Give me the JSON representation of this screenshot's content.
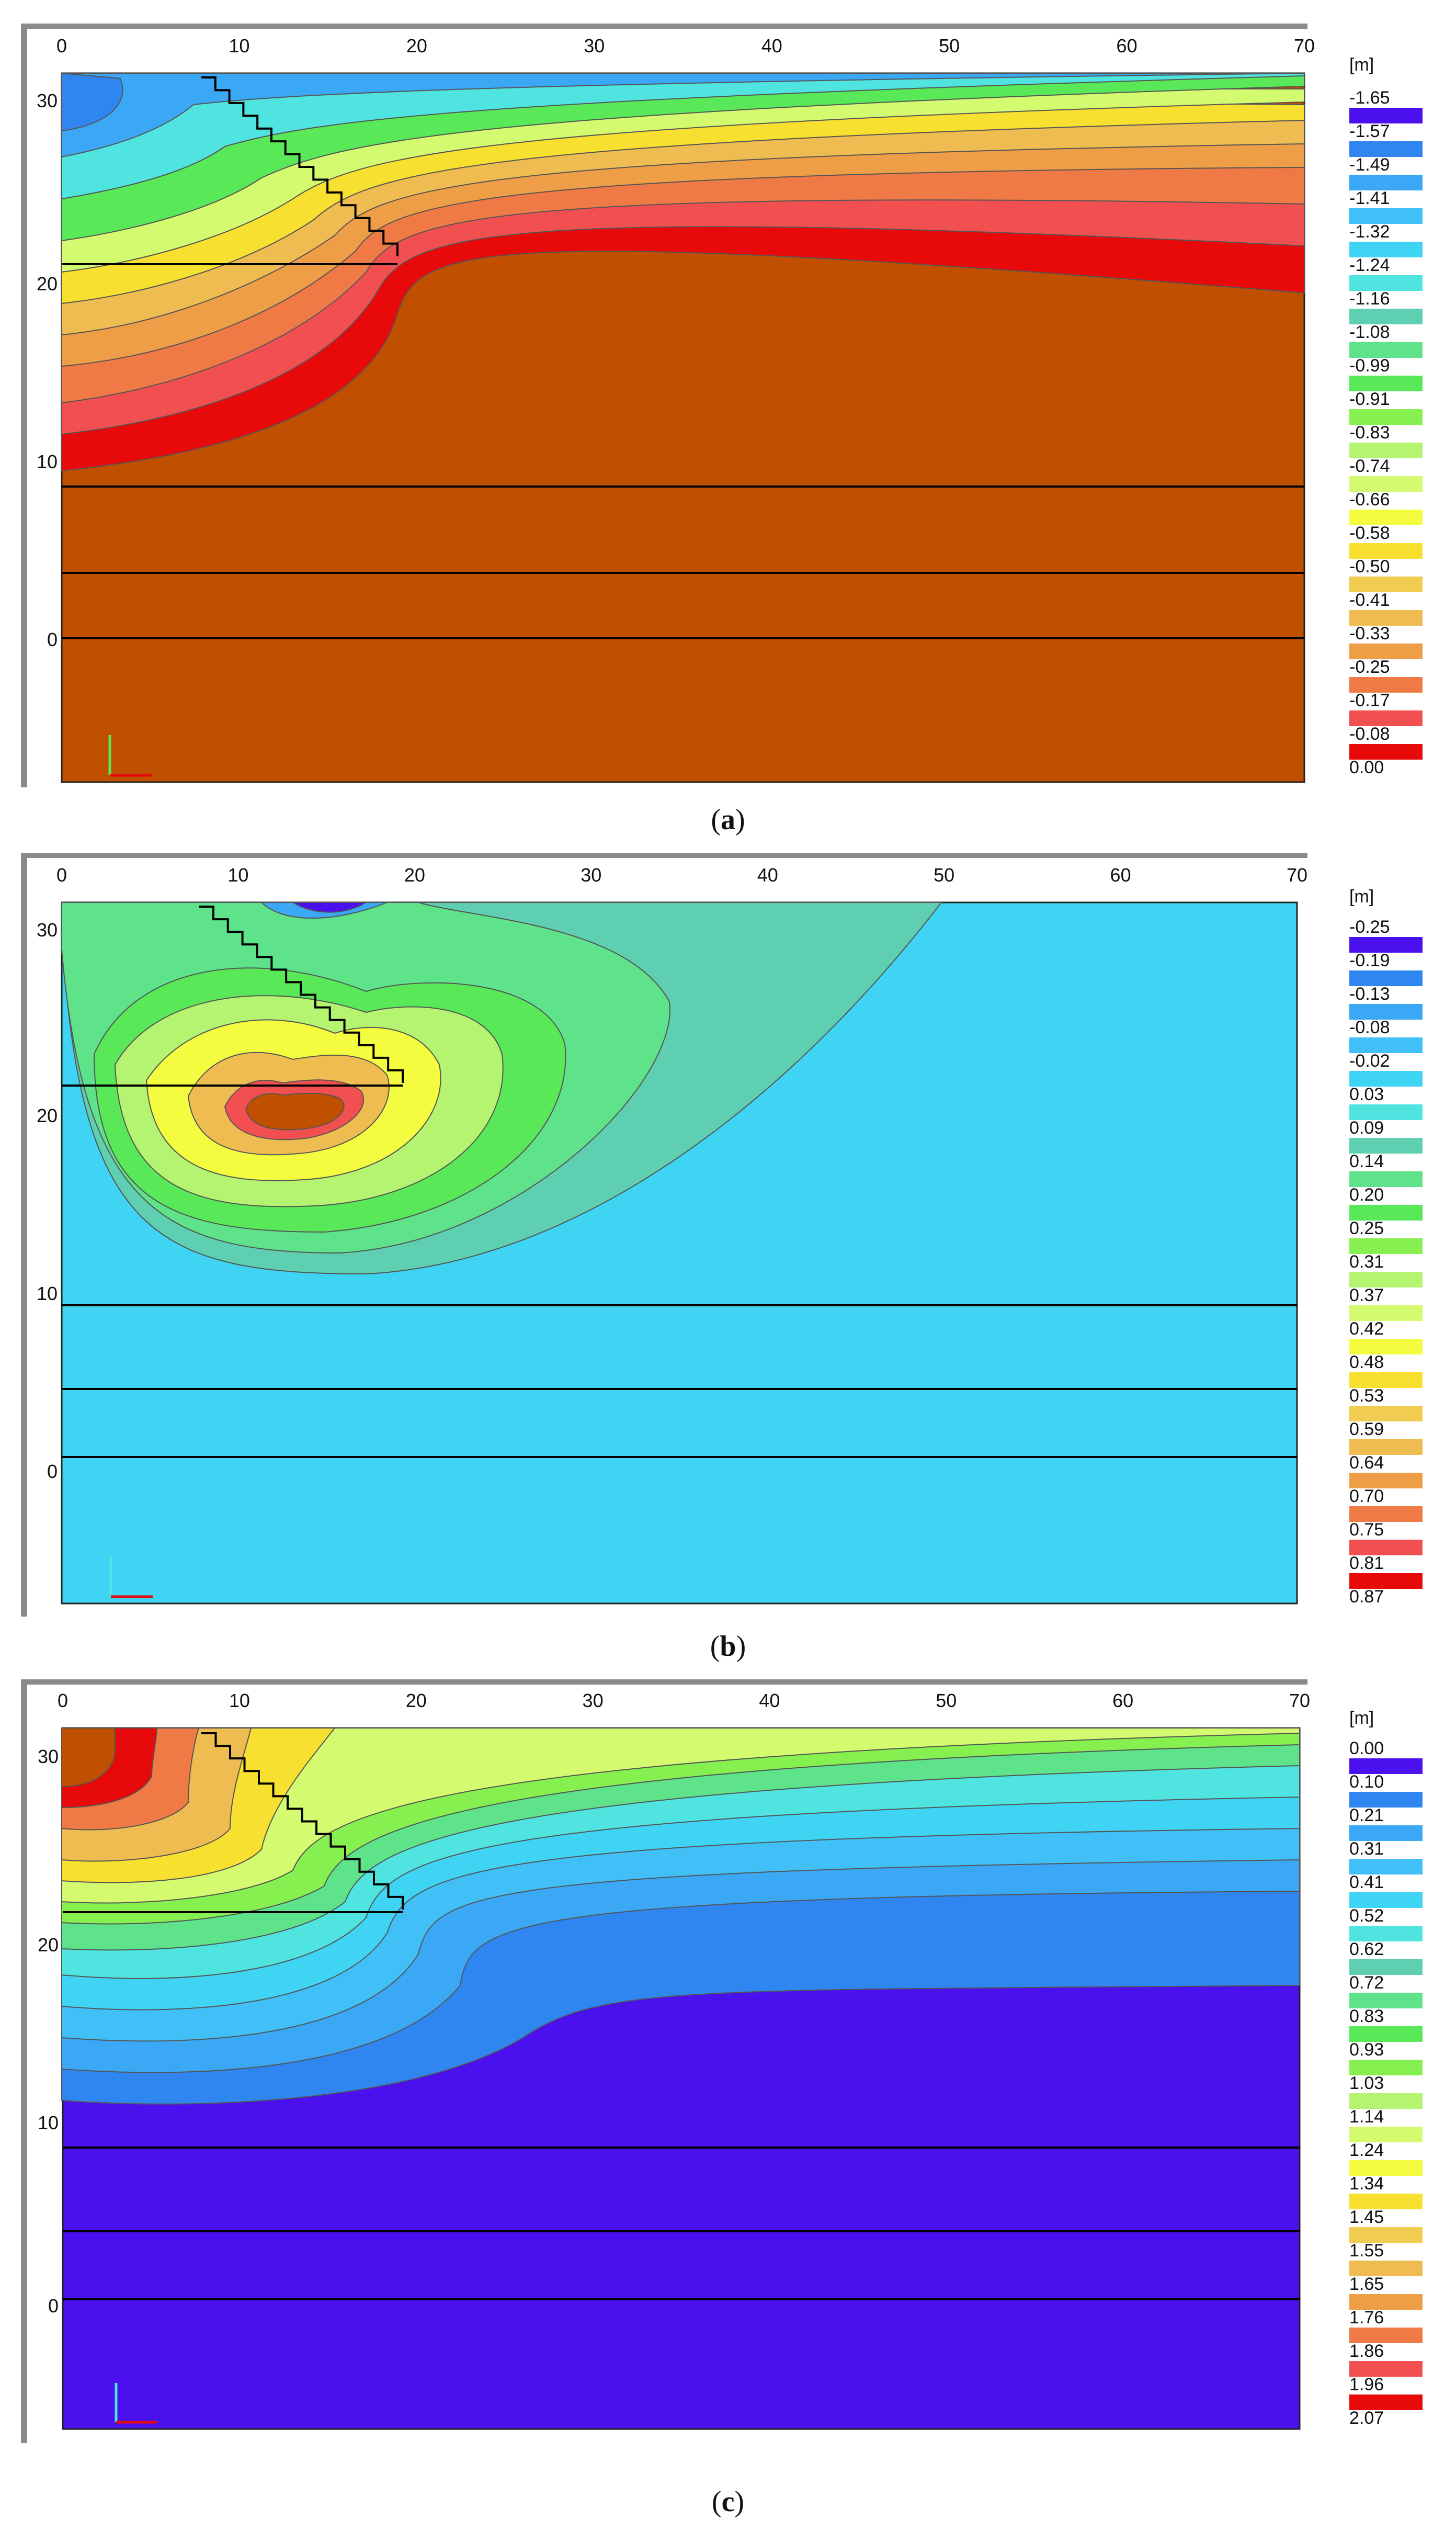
{
  "panels": [
    {
      "id": "a",
      "caption_letter": "a",
      "unit_label": "[m]",
      "x_ticks": [
        "0",
        "10",
        "20",
        "30",
        "40",
        "50",
        "60",
        "70"
      ],
      "y_ticks": [
        "30",
        "20",
        "10",
        "0"
      ],
      "legend_values": [
        "-1.65",
        "-1.57",
        "-1.49",
        "-1.41",
        "-1.32",
        "-1.24",
        "-1.16",
        "-1.08",
        "-0.99",
        "-0.91",
        "-0.83",
        "-0.74",
        "-0.66",
        "-0.58",
        "-0.50",
        "-0.41",
        "-0.33",
        "-0.25",
        "-0.17",
        "-0.08",
        "0.00"
      ],
      "background_color": "#c05000"
    },
    {
      "id": "b",
      "caption_letter": "b",
      "unit_label": "[m]",
      "x_ticks": [
        "0",
        "10",
        "20",
        "30",
        "40",
        "50",
        "60",
        "70"
      ],
      "y_ticks": [
        "30",
        "20",
        "10",
        "0"
      ],
      "legend_values": [
        "-0.25",
        "-0.19",
        "-0.13",
        "-0.08",
        "-0.02",
        "0.03",
        "0.09",
        "0.14",
        "0.20",
        "0.25",
        "0.31",
        "0.37",
        "0.42",
        "0.48",
        "0.53",
        "0.59",
        "0.64",
        "0.70",
        "0.75",
        "0.81",
        "0.87"
      ],
      "background_color": "#40d4f4"
    },
    {
      "id": "c",
      "caption_letter": "c",
      "unit_label": "[m]",
      "x_ticks": [
        "0",
        "10",
        "20",
        "30",
        "40",
        "50",
        "60",
        "70"
      ],
      "y_ticks": [
        "30",
        "20",
        "10",
        "0"
      ],
      "legend_values": [
        "0.00",
        "0.10",
        "0.21",
        "0.31",
        "0.41",
        "0.52",
        "0.62",
        "0.72",
        "0.83",
        "0.93",
        "1.03",
        "1.14",
        "1.24",
        "1.34",
        "1.45",
        "1.55",
        "1.65",
        "1.76",
        "1.86",
        "1.96",
        "2.07"
      ],
      "background_color": "#4a10ee"
    }
  ],
  "colors": {
    "palette": [
      "#4a10ee",
      "#2f86f0",
      "#3aa8f4",
      "#40c0f6",
      "#40d4f4",
      "#50e4e0",
      "#5ecfb0",
      "#5ee28a",
      "#58e858",
      "#86f050",
      "#b4f470",
      "#d4fa70",
      "#f4fc40",
      "#f8e030",
      "#f0cc50",
      "#eebc50",
      "#ee9e46",
      "#f07a46",
      "#f25050",
      "#e80a0a",
      "#c05000"
    ]
  }
}
